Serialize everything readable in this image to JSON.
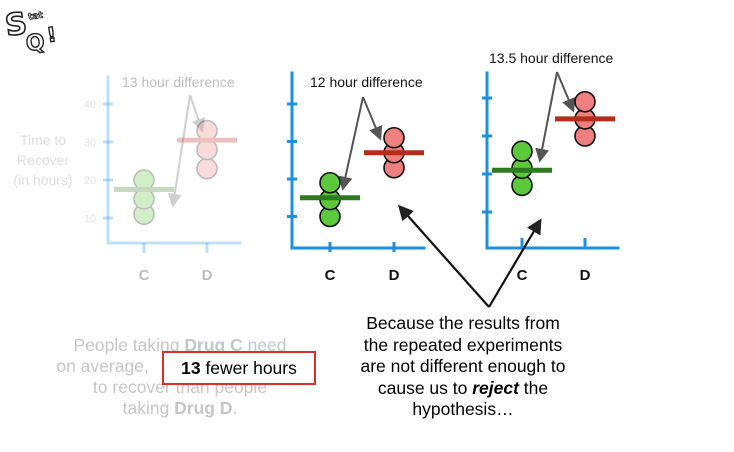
{
  "logo": {
    "text_top": "StatQuest",
    "text_q": "Q"
  },
  "panels": [
    {
      "id": "original",
      "faded": true,
      "difference_label": "13 hour difference",
      "y_axis_label": [
        "Time to",
        "Recover",
        "(in hours)"
      ],
      "y_ticks": [
        "10",
        "20",
        "30",
        "40"
      ],
      "categories": [
        "C",
        "D"
      ],
      "drug_c_points": [
        11,
        15,
        20
      ],
      "drug_d_points": [
        23,
        28,
        33
      ],
      "drug_c_mean": 17.5,
      "drug_d_mean": 30.5
    },
    {
      "id": "repeat-1",
      "faded": false,
      "difference_label": "12 hour difference",
      "categories": [
        "C",
        "D"
      ],
      "drug_c_points": [
        10,
        14.5,
        19
      ],
      "drug_d_points": [
        23,
        27,
        31
      ],
      "drug_c_mean": 15,
      "drug_d_mean": 27
    },
    {
      "id": "repeat-2",
      "faded": false,
      "difference_label": "13.5 hour difference",
      "categories": [
        "C",
        "D"
      ],
      "drug_c_points": [
        17,
        21.5,
        26
      ],
      "drug_d_points": [
        30,
        34.5,
        39
      ],
      "drug_c_mean": 21,
      "drug_d_mean": 34.5
    }
  ],
  "statement": {
    "line1_pre": "People taking ",
    "line1_bold": "Drug C",
    "line1_post": " need",
    "line2_pre": "on average, ",
    "highlight_bold": "13",
    "highlight_rest": " fewer hours",
    "line3": "to recover than people",
    "line4_pre": "taking ",
    "line4_bold": "Drug D",
    "line4_post": "."
  },
  "conclusion": {
    "line1": "Because the results from",
    "line2": "the repeated experiments",
    "line3": "are not different enough to",
    "line4_pre": "cause us to ",
    "line4_emph": "reject",
    "line4_post": " the",
    "line5": "hypothesis…"
  },
  "colors": {
    "axis": "#1e90e0",
    "drug_c_fill": "#5cc93a",
    "drug_c_mean": "#2e7a1e",
    "drug_d_fill": "#f08080",
    "drug_d_mean": "#b52d1a",
    "highlight_border": "#d9302a"
  }
}
